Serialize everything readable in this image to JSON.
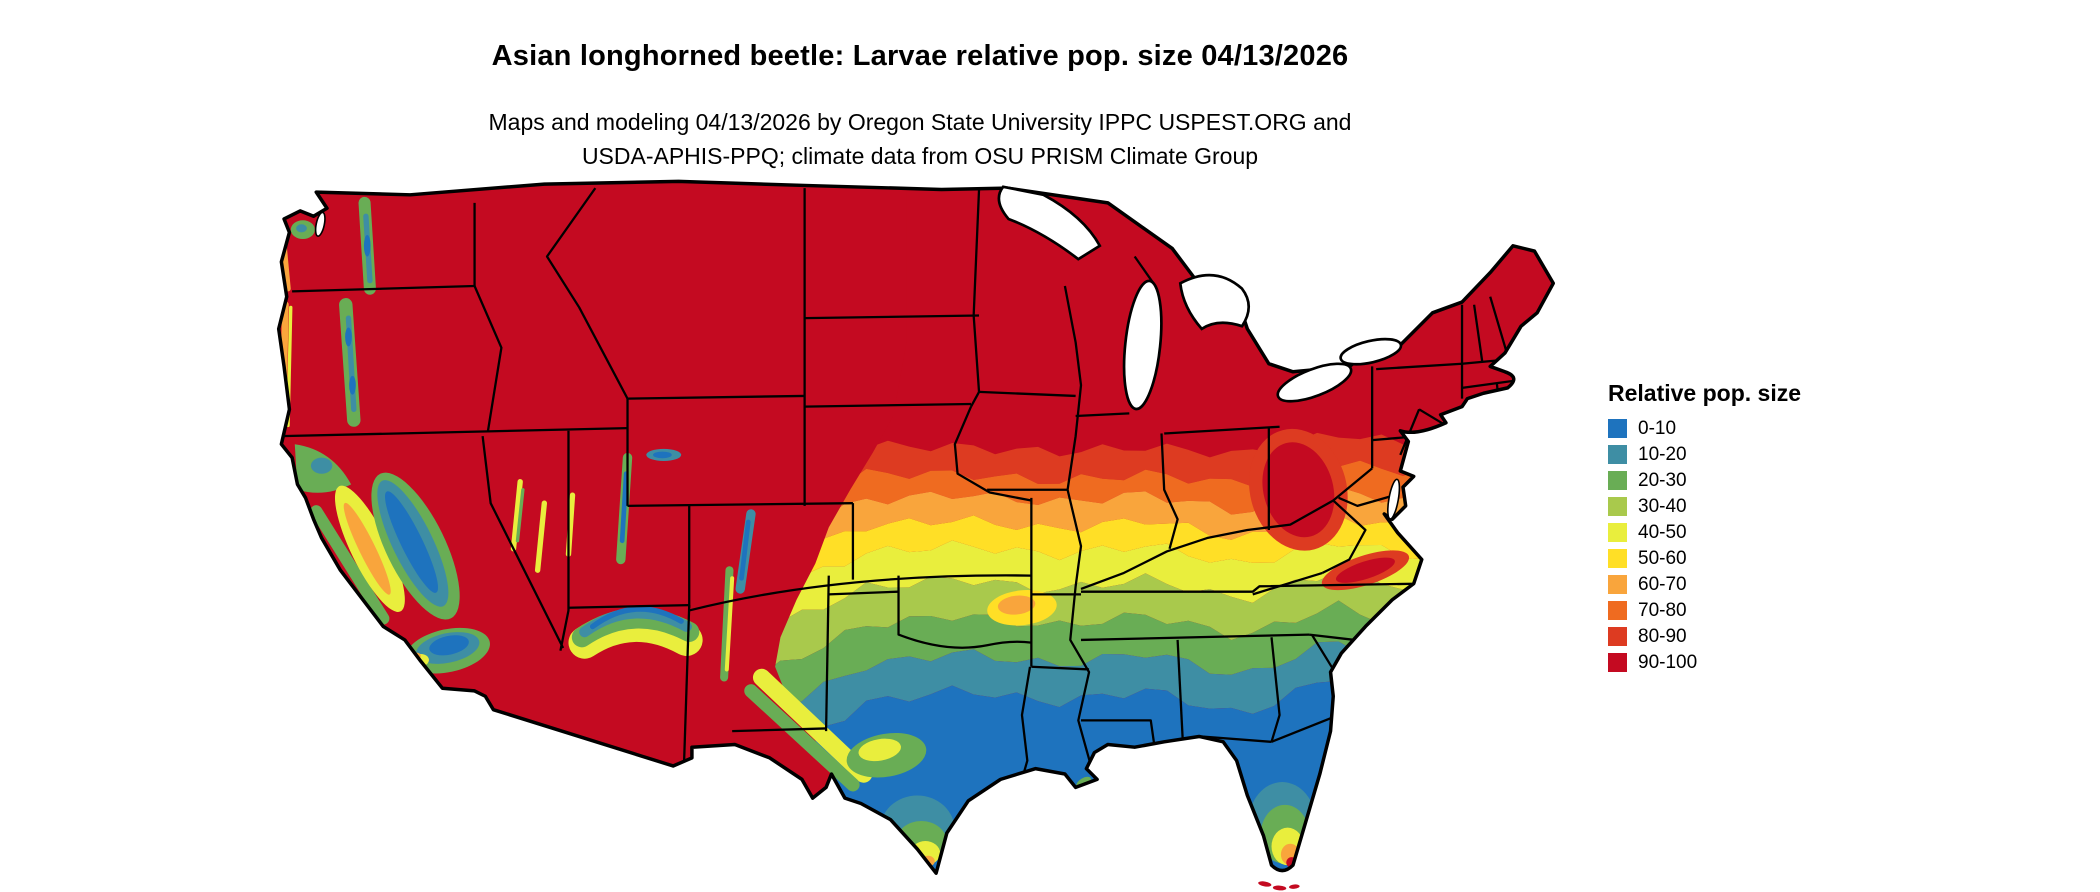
{
  "header": {
    "title": "Asian longhorned beetle: Larvae relative pop. size 04/13/2026",
    "subtitle_line1": "Maps and modeling 04/13/2026 by Oregon State University IPPC USPEST.ORG and",
    "subtitle_line2": "USDA-APHIS-PPQ; climate data from OSU PRISM Climate Group"
  },
  "legend": {
    "title": "Relative pop. size",
    "items": [
      {
        "label": "0-10",
        "color": "#1e73be"
      },
      {
        "label": "10-20",
        "color": "#3e8ea4"
      },
      {
        "label": "20-30",
        "color": "#69ad55"
      },
      {
        "label": "30-40",
        "color": "#a9c94c"
      },
      {
        "label": "40-50",
        "color": "#e9ee3d"
      },
      {
        "label": "50-60",
        "color": "#ffdf26"
      },
      {
        "label": "60-70",
        "color": "#f9a53c"
      },
      {
        "label": "70-80",
        "color": "#ef6b20"
      },
      {
        "label": "80-90",
        "color": "#dd3b21"
      },
      {
        "label": "90-100",
        "color": "#c40a21"
      }
    ]
  },
  "map": {
    "background_color": "#ffffff",
    "boundary_color": "#000000",
    "lakes_color": "#ffffff"
  }
}
